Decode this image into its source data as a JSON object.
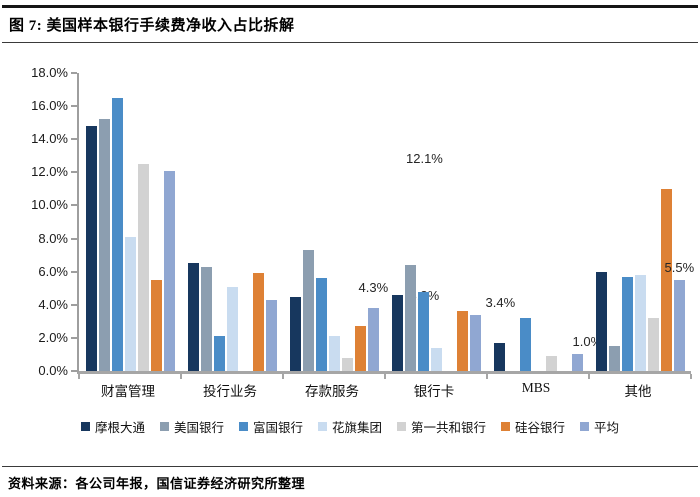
{
  "header": {
    "title": "图 7: 美国样本银行手续费净收入占比拆解"
  },
  "chart_data": {
    "type": "bar",
    "title": "美国样本银行手续费净收入占比拆解",
    "categories": [
      "财富管理",
      "投行业务",
      "存款服务",
      "银行卡",
      "MBS",
      "其他"
    ],
    "series": [
      {
        "name": "摩根大通",
        "color": "#17375E",
        "values": [
          14.8,
          6.5,
          4.5,
          4.6,
          1.7,
          6.0
        ]
      },
      {
        "name": "美国银行",
        "color": "#8C9EB0",
        "values": [
          15.2,
          6.3,
          7.3,
          6.4,
          0,
          1.5
        ]
      },
      {
        "name": "富国银行",
        "color": "#4A8CC7",
        "values": [
          16.5,
          2.1,
          5.6,
          4.8,
          3.2,
          5.7
        ]
      },
      {
        "name": "花旗集团",
        "color": "#C9DCF0",
        "values": [
          8.1,
          5.1,
          2.1,
          1.4,
          0,
          5.8
        ]
      },
      {
        "name": "第一共和银行",
        "color": "#D2D2D2",
        "values": [
          12.5,
          0,
          0.8,
          0,
          0.9,
          3.2
        ]
      },
      {
        "name": "硅谷银行",
        "color": "#DE8135",
        "values": [
          5.5,
          5.9,
          2.7,
          3.6,
          0,
          11.0
        ]
      },
      {
        "name": "平均",
        "color": "#90A7D2",
        "values": [
          12.1,
          4.3,
          3.8,
          3.4,
          1.0,
          5.5
        ]
      }
    ],
    "avg_labels": [
      "12.1%",
      "4.3%",
      "3.8%",
      "3.4%",
      "1.0%",
      "5.5%"
    ],
    "ylim": [
      0,
      18
    ],
    "ytick_step": 2,
    "ytick_labels": [
      "0.0%",
      "2.0%",
      "4.0%",
      "6.0%",
      "8.0%",
      "10.0%",
      "12.0%",
      "14.0%",
      "16.0%",
      "18.0%"
    ],
    "grid": false,
    "legend_position": "bottom"
  },
  "footer": {
    "source": "资料来源：各公司年报，国信证券经济研究所整理"
  }
}
